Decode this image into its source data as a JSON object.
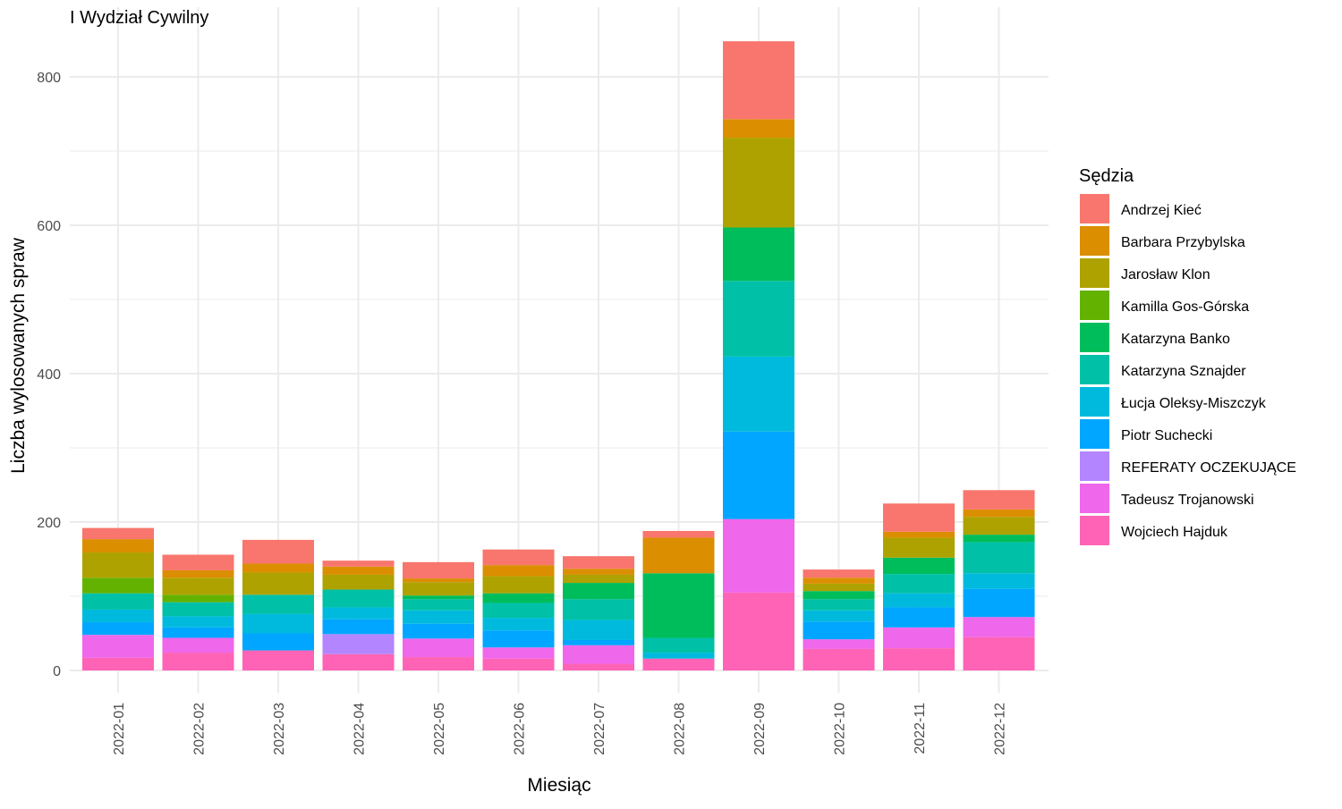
{
  "chart_data": {
    "type": "bar",
    "stacked": true,
    "title": "I Wydział Cywilny",
    "xlabel": "Miesiąc",
    "ylabel": "Liczba wylosowanych spraw",
    "ylim": [
      -30,
      850
    ],
    "yticks": [
      0,
      200,
      400,
      600,
      800
    ],
    "grid": true,
    "legend_title": "Sędzia",
    "legend_position": "right",
    "categories": [
      "2022-01",
      "2022-02",
      "2022-03",
      "2022-04",
      "2022-05",
      "2022-06",
      "2022-07",
      "2022-08",
      "2022-09",
      "2022-10",
      "2022-11",
      "2022-12"
    ],
    "series": [
      {
        "name": "Andrzej Kieć",
        "color": "#F8766D",
        "values": [
          15,
          21,
          32,
          8,
          22,
          21,
          17,
          9,
          105,
          11,
          38,
          26
        ]
      },
      {
        "name": "Barbara Przybylska",
        "color": "#DB8E00",
        "values": [
          18,
          10,
          12,
          11,
          5,
          15,
          8,
          48,
          25,
          8,
          8,
          10
        ]
      },
      {
        "name": "Jarosław Klon",
        "color": "#AEA200",
        "values": [
          34,
          23,
          30,
          20,
          18,
          23,
          11,
          0,
          121,
          10,
          27,
          24
        ]
      },
      {
        "name": "Kamilla Gos-Górska",
        "color": "#64B200",
        "values": [
          21,
          10,
          0,
          0,
          0,
          0,
          0,
          0,
          0,
          0,
          0,
          0
        ]
      },
      {
        "name": "Katarzyna Banko",
        "color": "#00BD5C",
        "values": [
          0,
          0,
          0,
          0,
          5,
          13,
          22,
          87,
          72,
          11,
          22,
          10
        ]
      },
      {
        "name": "Katarzyna Sznajder",
        "color": "#00C1A7",
        "values": [
          22,
          19,
          26,
          24,
          15,
          20,
          28,
          20,
          102,
          15,
          26,
          42
        ]
      },
      {
        "name": "Łucja Oleksy-Miszczyk",
        "color": "#00BADE",
        "values": [
          17,
          15,
          26,
          16,
          18,
          17,
          27,
          8,
          101,
          15,
          19,
          21
        ]
      },
      {
        "name": "Piotr Suchecki",
        "color": "#00A6FF",
        "values": [
          17,
          14,
          23,
          20,
          20,
          23,
          7,
          0,
          118,
          24,
          27,
          38
        ]
      },
      {
        "name": "REFERATY OCZEKUJĄCE",
        "color": "#B385FF",
        "values": [
          0,
          0,
          0,
          27,
          0,
          0,
          0,
          0,
          0,
          0,
          0,
          0
        ]
      },
      {
        "name": "Tadeusz Trojanowski",
        "color": "#EF67EB",
        "values": [
          31,
          20,
          0,
          0,
          25,
          15,
          25,
          0,
          99,
          13,
          28,
          27
        ]
      },
      {
        "name": "Wojciech Hajduk",
        "color": "#FF63B6",
        "values": [
          17,
          24,
          27,
          22,
          18,
          16,
          9,
          16,
          105,
          29,
          30,
          45
        ]
      }
    ]
  }
}
